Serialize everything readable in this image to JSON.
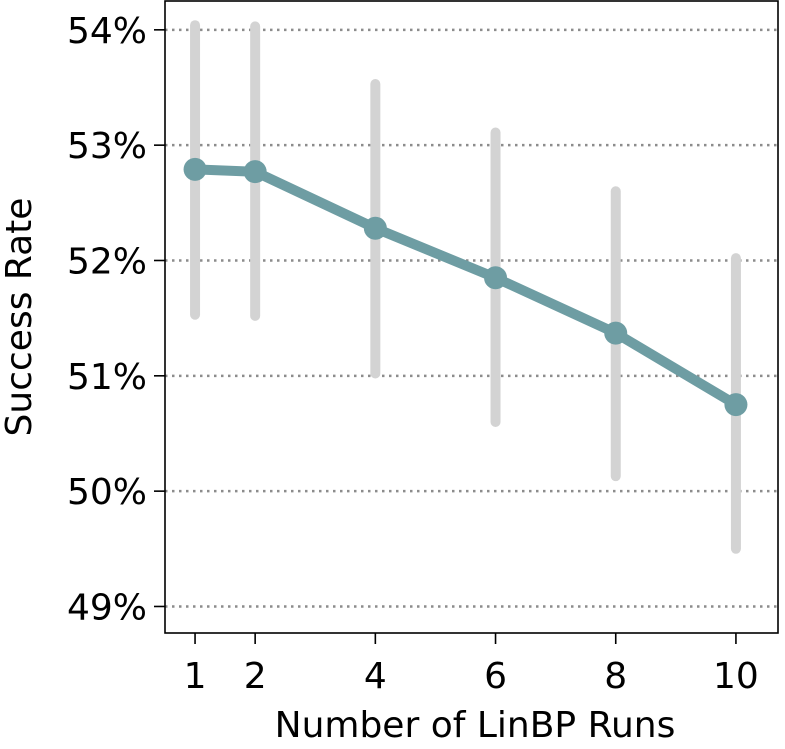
{
  "chart_data": {
    "type": "line",
    "title": "",
    "xlabel": "Number of LinBP Runs",
    "ylabel": "Success Rate",
    "x": [
      1,
      2,
      4,
      6,
      8,
      10
    ],
    "xticks": [
      1,
      2,
      4,
      6,
      8,
      10
    ],
    "xtick_labels": [
      "1",
      "2",
      "4",
      "6",
      "8",
      "10"
    ],
    "yticks": [
      49,
      50,
      51,
      52,
      53,
      54
    ],
    "ytick_labels": [
      "49%",
      "50%",
      "51%",
      "52%",
      "53%",
      "54%"
    ],
    "xlim": [
      0.5,
      10.7
    ],
    "ylim": [
      48.77,
      54.25
    ],
    "y_unit": "%",
    "grid": "horizontal-dotted",
    "series": [
      {
        "values": [
          52.79,
          52.77,
          52.28,
          51.85,
          51.37,
          50.75
        ],
        "error_low": [
          51.53,
          51.52,
          51.02,
          50.6,
          50.13,
          49.5
        ],
        "error_high": [
          54.04,
          54.03,
          53.53,
          53.11,
          52.6,
          52.02
        ],
        "color": "#6e9da3",
        "error_color": "#d3d3d3"
      }
    ],
    "colors": {
      "grid": "#8c8c8c",
      "axis": "#000000"
    }
  }
}
